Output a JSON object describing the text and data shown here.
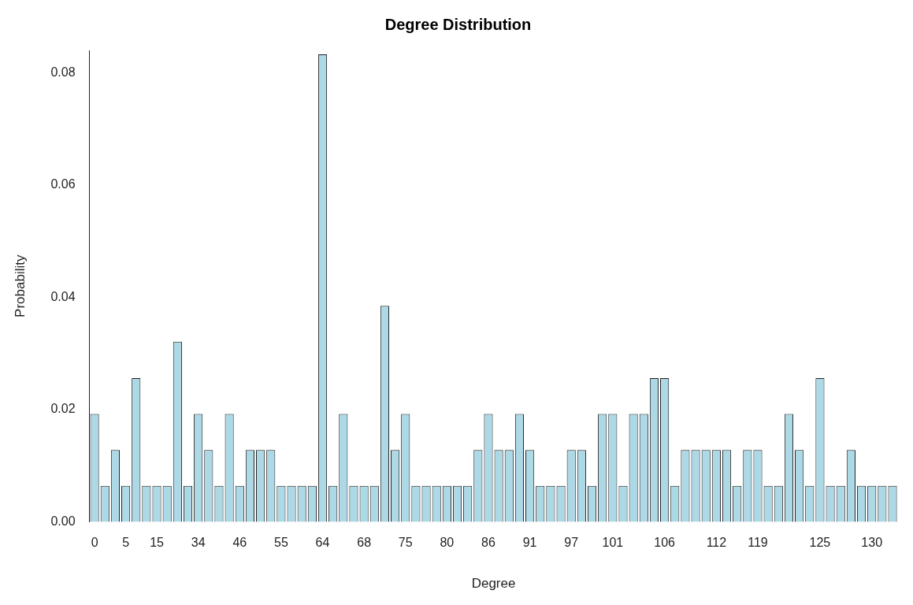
{
  "chart_data": {
    "type": "bar",
    "title": "Degree Distribution",
    "xlabel": "Degree",
    "ylabel": "Probability",
    "color": "#add8e6",
    "categories": [
      "0",
      null,
      null,
      "5",
      null,
      null,
      "15",
      null,
      null,
      null,
      "34",
      null,
      null,
      null,
      "46",
      null,
      null,
      null,
      "55",
      null,
      null,
      null,
      "64",
      null,
      null,
      null,
      "68",
      null,
      null,
      null,
      "75",
      null,
      null,
      null,
      "80",
      null,
      null,
      null,
      "86",
      null,
      null,
      null,
      "91",
      null,
      null,
      null,
      "97",
      null,
      null,
      null,
      "101",
      null,
      null,
      null,
      null,
      "106",
      null,
      null,
      null,
      null,
      "112",
      null,
      null,
      null,
      "119",
      null,
      null,
      null,
      null,
      null,
      "125",
      null,
      null,
      null,
      null,
      "130",
      null,
      null
    ],
    "values": [
      0.0192,
      0.0064,
      0.0128,
      0.0064,
      0.0256,
      0.0064,
      0.0064,
      0.0064,
      0.0321,
      0.0064,
      0.0192,
      0.0128,
      0.0064,
      0.0192,
      0.0064,
      0.0128,
      0.0128,
      0.0128,
      0.0064,
      0.0064,
      0.0064,
      0.0064,
      0.0833,
      0.0064,
      0.0192,
      0.0064,
      0.0064,
      0.0064,
      0.0385,
      0.0128,
      0.0192,
      0.0064,
      0.0064,
      0.0064,
      0.0064,
      0.0064,
      0.0064,
      0.0128,
      0.0192,
      0.0128,
      0.0128,
      0.0192,
      0.0128,
      0.0064,
      0.0064,
      0.0064,
      0.0128,
      0.0128,
      0.0064,
      0.0192,
      0.0192,
      0.0064,
      0.0192,
      0.0192,
      0.0256,
      0.0256,
      0.0064,
      0.0128,
      0.0128,
      0.0128,
      0.0128,
      0.0128,
      0.0064,
      0.0128,
      0.0128,
      0.0064,
      0.0064,
      0.0192,
      0.0128,
      0.0064,
      0.0256,
      0.0064,
      0.0064,
      0.0128,
      0.0064,
      0.0064,
      0.0064,
      0.0064
    ],
    "ylim": [
      0,
      0.084
    ],
    "yticks": [
      {
        "value": 0,
        "label": "0.00"
      },
      {
        "value": 0.02,
        "label": "0.02"
      },
      {
        "value": 0.04,
        "label": "0.04"
      },
      {
        "value": 0.06,
        "label": "0.06"
      },
      {
        "value": 0.08,
        "label": "0.08"
      }
    ],
    "grid": false,
    "legend": false
  }
}
